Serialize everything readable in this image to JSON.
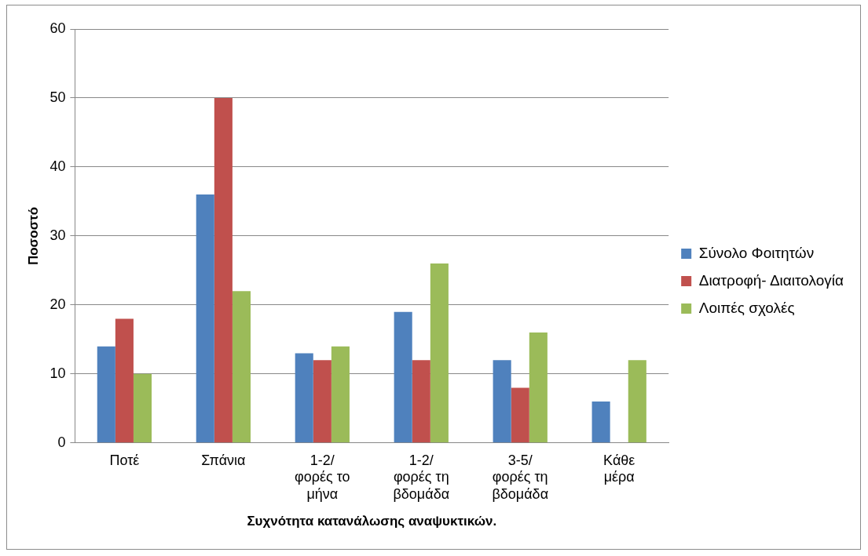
{
  "chart_data": {
    "type": "bar",
    "categories": [
      "Ποτέ",
      "Σπάνια",
      "1-2/ φορές το μήνα",
      "1-2/ φορές τη βδομάδα",
      "3-5/ φορές τη βδομάδα",
      "Κάθε μέρα"
    ],
    "series": [
      {
        "name": "Σύνολο Φοιτητών",
        "color": "#4f81bd",
        "values": [
          14,
          36,
          13,
          19,
          12,
          6
        ]
      },
      {
        "name": "Διατροφή- Διαιτολογία",
        "color": "#c0504d",
        "values": [
          18,
          50,
          12,
          12,
          8,
          null
        ]
      },
      {
        "name": "Λοιπές σχολές",
        "color": "#9bbb59",
        "values": [
          10,
          22,
          14,
          26,
          16,
          12
        ]
      }
    ],
    "xlabel": "Συχνότητα κατανάλωσης αναψυκτικών.",
    "ylabel": "Ποσοστό",
    "ylim": [
      0,
      60
    ],
    "yticks": [
      0,
      10,
      20,
      30,
      40,
      50,
      60
    ],
    "grid": "y",
    "legend": "right"
  }
}
